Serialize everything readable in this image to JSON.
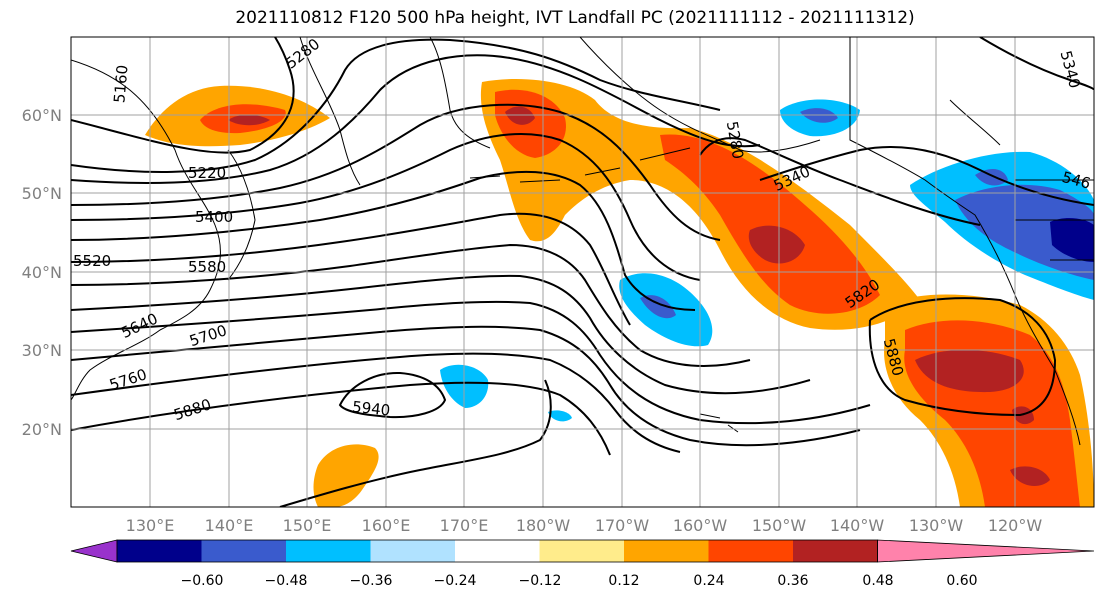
{
  "title": "2021110812 F120 500 hPa height, IVT Landfall PC (2021111112 - 2021111312)",
  "lat_labels": [
    "60°N",
    "50°N",
    "40°N",
    "30°N",
    "20°N"
  ],
  "lon_labels": [
    "130°E",
    "140°E",
    "150°E",
    "160°E",
    "170°E",
    "180°W",
    "170°W",
    "160°W",
    "150°W",
    "140°W",
    "130°W",
    "120°W"
  ],
  "contour_labels": [
    "5160",
    "5280",
    "5220",
    "5400",
    "5520",
    "5580",
    "5640",
    "5700",
    "5760",
    "5880",
    "5940",
    "5280",
    "5340",
    "5820",
    "5880",
    "5340",
    "546"
  ],
  "colorbar": {
    "ticks": [
      "−0.60",
      "−0.48",
      "−0.36",
      "−0.24",
      "−0.12",
      "0.12",
      "0.24",
      "0.36",
      "0.48",
      "0.60"
    ],
    "colors": [
      "#9932cc",
      "#00008b",
      "#3a5bcd",
      "#00bfff",
      "#b0e2ff",
      "#ffffff",
      "#ffec8b",
      "#ffa500",
      "#ff4500",
      "#b22222",
      "#ff82ab"
    ]
  },
  "colors": {
    "grid": "#a0a0a0",
    "contour": "#000000"
  }
}
